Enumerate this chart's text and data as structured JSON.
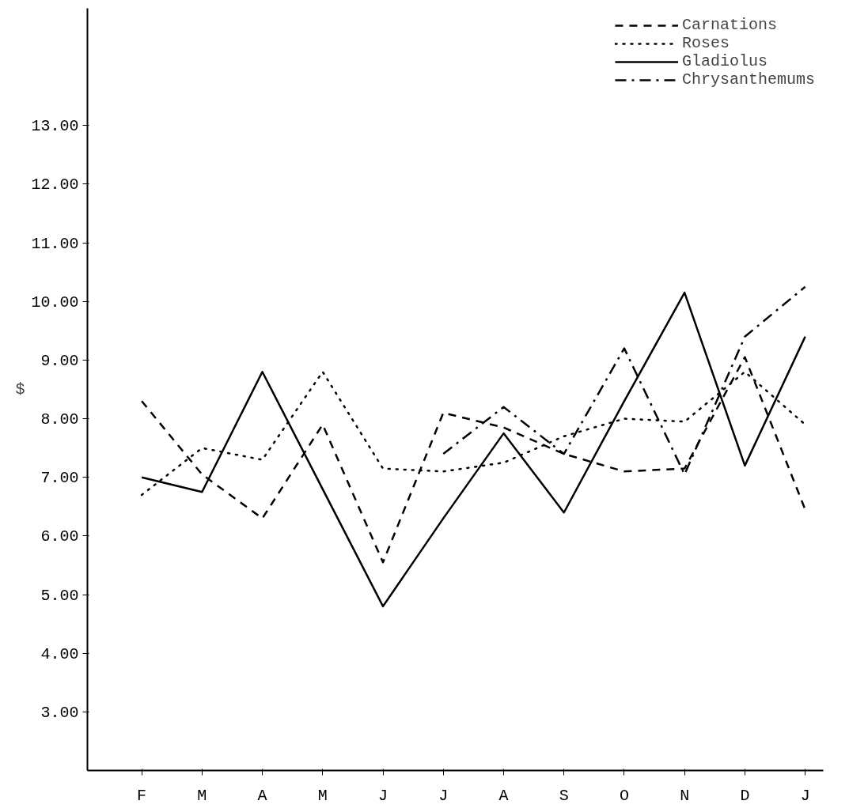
{
  "chart_data": {
    "type": "line",
    "ylabel": "$",
    "categories": [
      "F",
      "M",
      "A",
      "M",
      "J",
      "J",
      "A",
      "S",
      "O",
      "N",
      "D",
      "J"
    ],
    "series": [
      {
        "name": "Carnations",
        "color": "#000000",
        "line_style": "dashed",
        "values": [
          8.3,
          7.05,
          6.3,
          7.9,
          5.55,
          8.1,
          7.85,
          7.4,
          7.1,
          7.15,
          9.05,
          6.45
        ]
      },
      {
        "name": "Roses",
        "color": "#000000",
        "line_style": "dotted",
        "values": [
          6.7,
          7.5,
          7.3,
          8.8,
          7.15,
          7.1,
          7.25,
          7.7,
          8.0,
          7.95,
          8.8,
          7.9
        ]
      },
      {
        "name": "Gladiolus",
        "color": "#000000",
        "line_style": "solid",
        "values": [
          7.0,
          6.75,
          8.8,
          6.8,
          4.8,
          6.3,
          7.75,
          6.4,
          8.3,
          10.15,
          7.2,
          9.4
        ]
      },
      {
        "name": "Chrysanthemums",
        "color": "#000000",
        "line_style": "dashdot",
        "values": [
          null,
          null,
          null,
          null,
          null,
          7.4,
          8.2,
          7.4,
          9.2,
          7.05,
          9.4,
          10.25
        ]
      }
    ],
    "ylim": [
      2,
      15
    ],
    "yticks": [
      {
        "value": 3,
        "label": "3.00"
      },
      {
        "value": 4,
        "label": "4.00"
      },
      {
        "value": 5,
        "label": "5.00"
      },
      {
        "value": 6,
        "label": "6.00"
      },
      {
        "value": 7,
        "label": "7.00"
      },
      {
        "value": 8,
        "label": "8.00"
      },
      {
        "value": 9,
        "label": "9.00"
      },
      {
        "value": 10,
        "label": "10.00"
      },
      {
        "value": 11,
        "label": "11.00"
      },
      {
        "value": 12,
        "label": "12.00"
      },
      {
        "value": 13,
        "label": "13.00"
      }
    ],
    "grid": false,
    "legend": "top right",
    "marker": "none"
  }
}
